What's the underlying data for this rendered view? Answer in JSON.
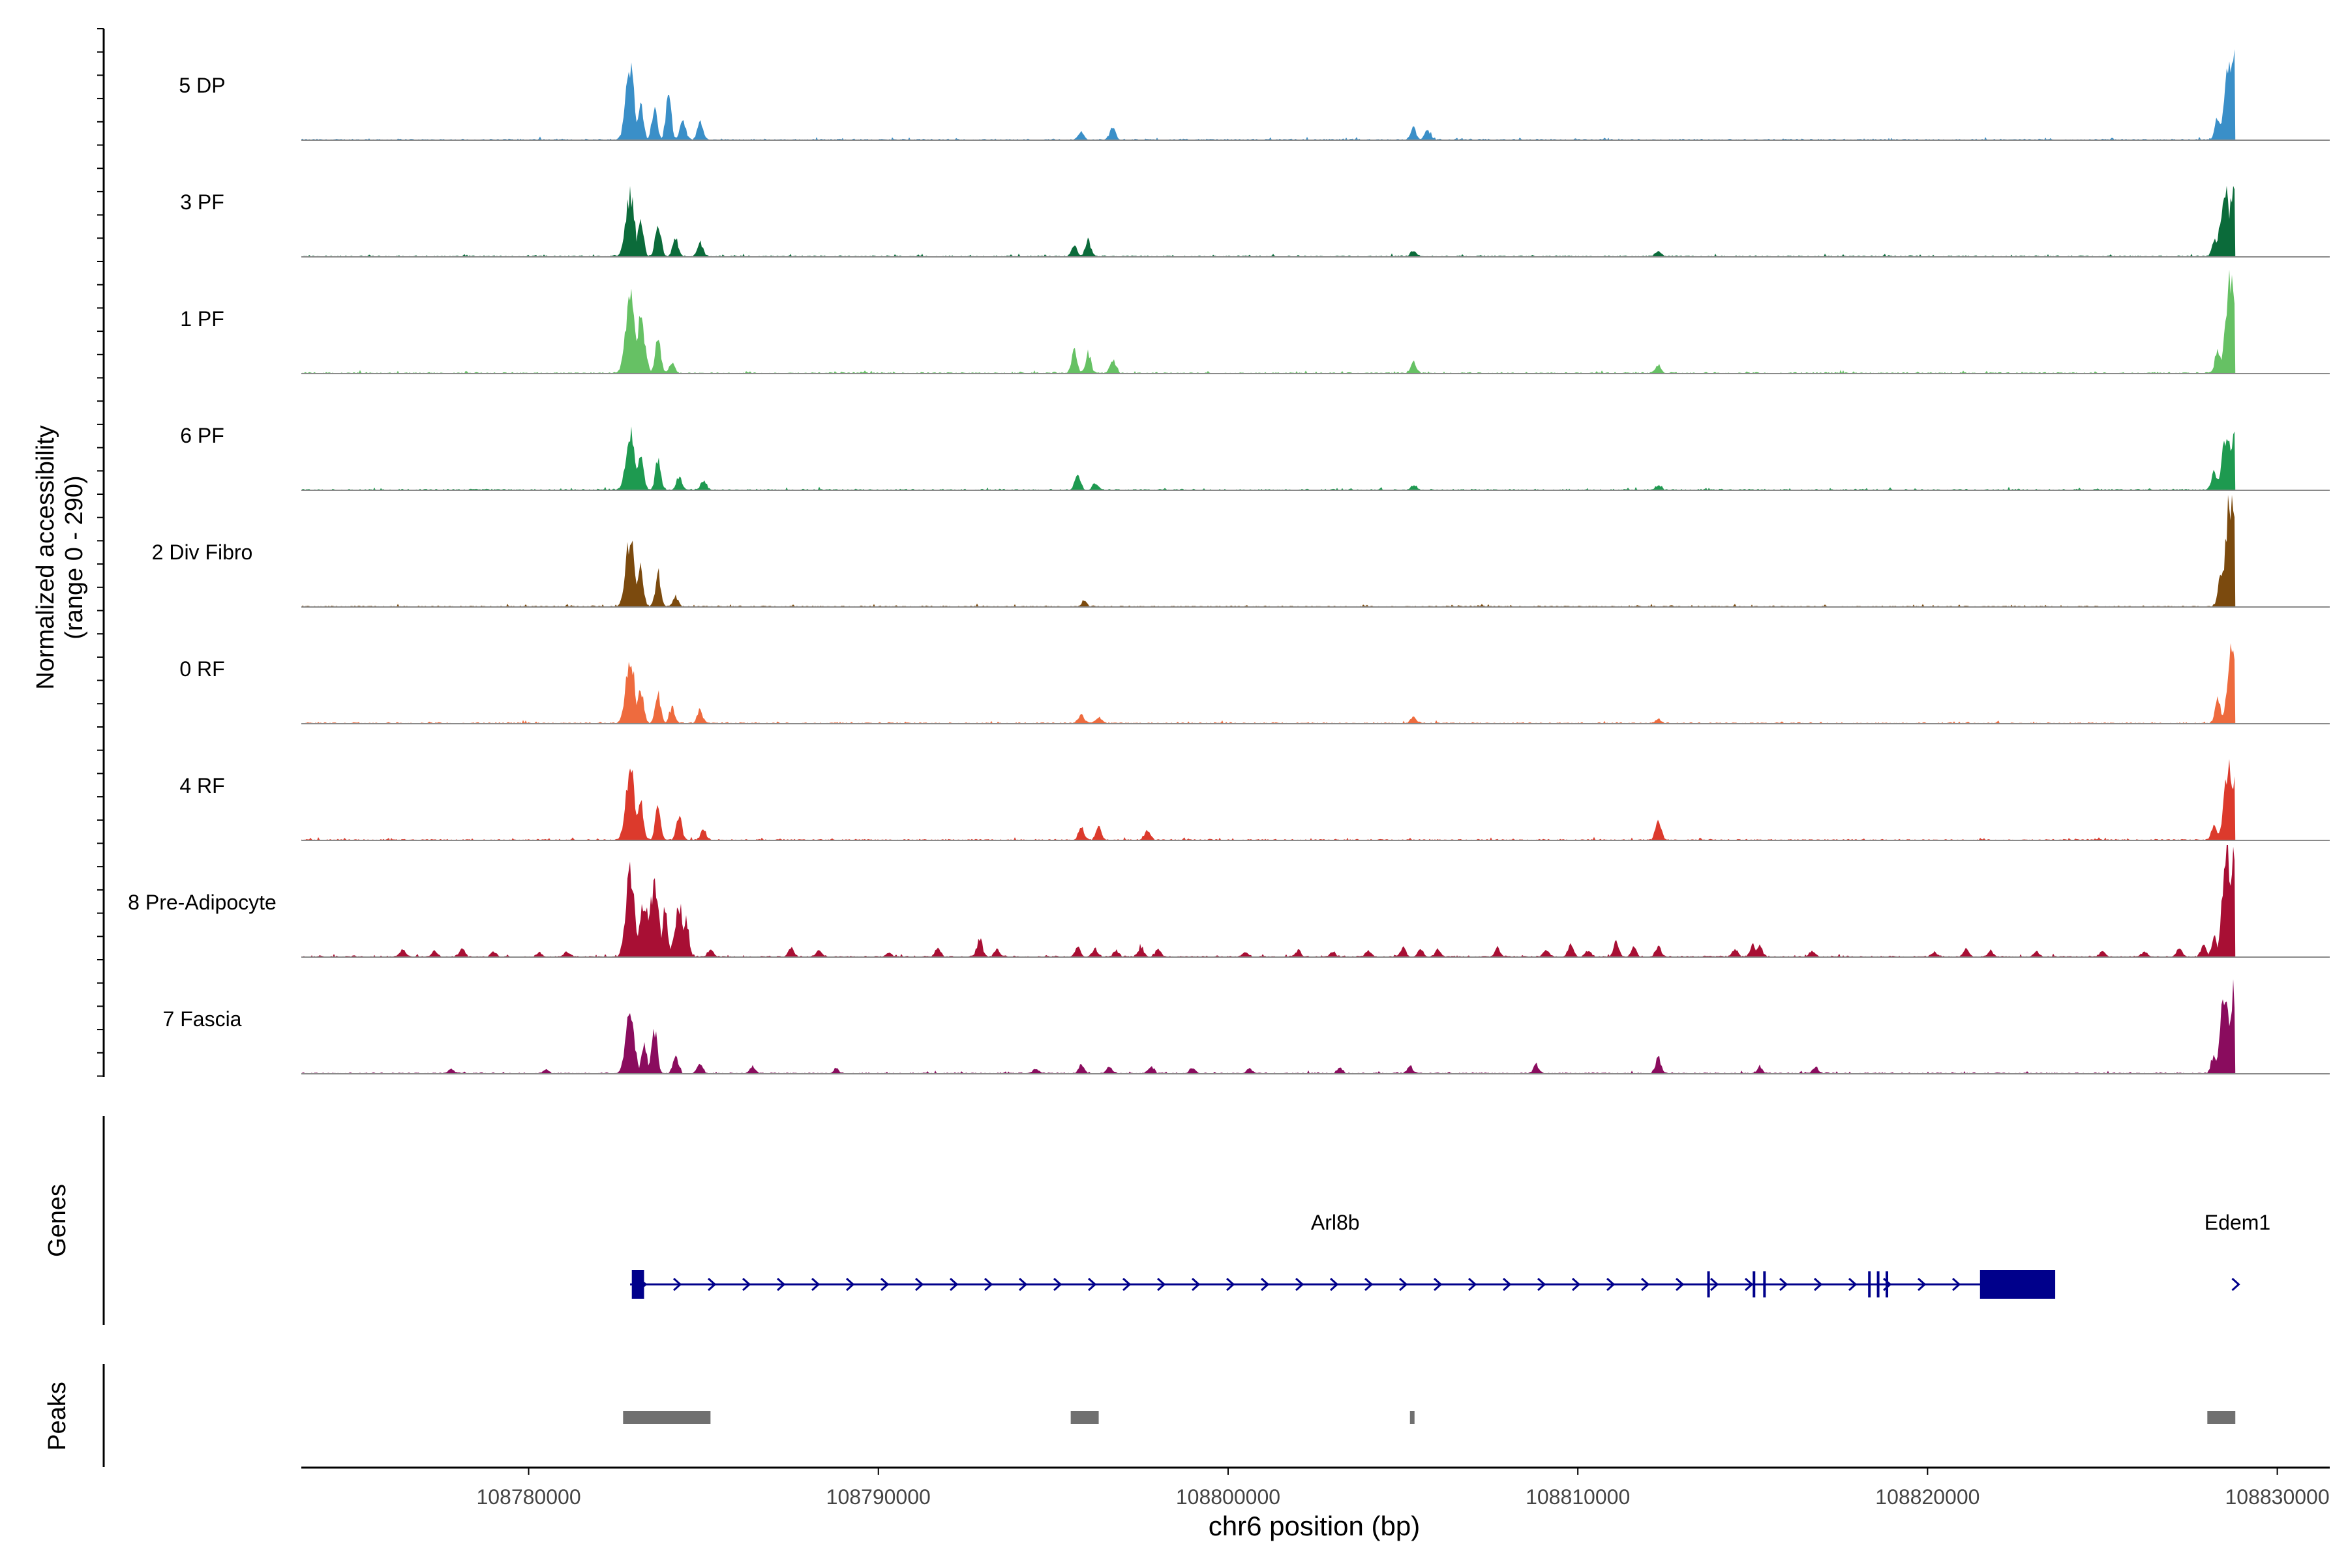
{
  "chart_data": {
    "type": "area",
    "title": "",
    "chromosome": "chr6",
    "xlabel": "chr6 position (bp)",
    "ylabel_line1": "Normalized accessibility",
    "ylabel_line2": "(range 0 - 290)",
    "y_range": [
      0,
      290
    ],
    "xlim": [
      108773500,
      108831500
    ],
    "x_ticks": [
      108780000,
      108790000,
      108800000,
      108810000,
      108820000,
      108830000
    ],
    "x_tick_labels": [
      "108780000",
      "108790000",
      "108800000",
      "108810000",
      "108820000",
      "108830000"
    ],
    "track_range": [
      108773500,
      108828800
    ],
    "tracks": [
      {
        "label": "5 DP",
        "color": "#3A8FC8",
        "peaks": [
          [
            108782900,
            185
          ],
          [
            108783200,
            100
          ],
          [
            108783600,
            75
          ],
          [
            108784000,
            110
          ],
          [
            108784400,
            55
          ],
          [
            108784900,
            45
          ],
          [
            108795800,
            18
          ],
          [
            108796700,
            35
          ],
          [
            108805300,
            30
          ],
          [
            108805700,
            25
          ],
          [
            108828300,
            60
          ],
          [
            108828600,
            180
          ],
          [
            108828750,
            200
          ]
        ]
      },
      {
        "label": "3 PF",
        "color": "#0B6B3A",
        "peaks": [
          [
            108782900,
            160
          ],
          [
            108783200,
            100
          ],
          [
            108783700,
            90
          ],
          [
            108784200,
            45
          ],
          [
            108784900,
            35
          ],
          [
            108795600,
            30
          ],
          [
            108796000,
            40
          ],
          [
            108805300,
            15
          ],
          [
            108812300,
            15
          ],
          [
            108828200,
            40
          ],
          [
            108828500,
            170
          ],
          [
            108828750,
            185
          ]
        ]
      },
      {
        "label": "1 PF",
        "color": "#66C164",
        "peaks": [
          [
            108782900,
            210
          ],
          [
            108783200,
            130
          ],
          [
            108783700,
            90
          ],
          [
            108784100,
            30
          ],
          [
            108795600,
            55
          ],
          [
            108796000,
            50
          ],
          [
            108796700,
            35
          ],
          [
            108805300,
            28
          ],
          [
            108812300,
            22
          ],
          [
            108828300,
            60
          ],
          [
            108828650,
            240
          ],
          [
            108828780,
            200
          ]
        ]
      },
      {
        "label": "6 PF",
        "color": "#1E9A50",
        "peaks": [
          [
            108782900,
            150
          ],
          [
            108783200,
            100
          ],
          [
            108783700,
            75
          ],
          [
            108784300,
            35
          ],
          [
            108785000,
            25
          ],
          [
            108795700,
            42
          ],
          [
            108796200,
            18
          ],
          [
            108805300,
            12
          ],
          [
            108812300,
            10
          ],
          [
            108828200,
            50
          ],
          [
            108828550,
            140
          ],
          [
            108828770,
            150
          ]
        ]
      },
      {
        "label": "2 Div Fibro",
        "color": "#7B4A0E",
        "peaks": [
          [
            108782900,
            175
          ],
          [
            108783200,
            100
          ],
          [
            108783700,
            85
          ],
          [
            108784200,
            25
          ],
          [
            108795900,
            12
          ],
          [
            108828400,
            90
          ],
          [
            108828650,
            280
          ],
          [
            108828780,
            260
          ]
        ]
      },
      {
        "label": "0 RF",
        "color": "#EE6B3E",
        "peaks": [
          [
            108782900,
            170
          ],
          [
            108783200,
            90
          ],
          [
            108783700,
            75
          ],
          [
            108784100,
            40
          ],
          [
            108784900,
            35
          ],
          [
            108795800,
            25
          ],
          [
            108796300,
            15
          ],
          [
            108805300,
            18
          ],
          [
            108812300,
            12
          ],
          [
            108828300,
            70
          ],
          [
            108828700,
            180
          ]
        ]
      },
      {
        "label": "4 RF",
        "color": "#DC3A2C",
        "peaks": [
          [
            108782900,
            185
          ],
          [
            108783200,
            100
          ],
          [
            108783700,
            85
          ],
          [
            108784300,
            65
          ],
          [
            108785000,
            25
          ],
          [
            108795800,
            35
          ],
          [
            108796300,
            32
          ],
          [
            108797700,
            25
          ],
          [
            108812300,
            55
          ],
          [
            108828200,
            40
          ],
          [
            108828600,
            190
          ],
          [
            108828780,
            170
          ]
        ]
      },
      {
        "label": "8 Pre-Adipocyte",
        "color": "#A80F34",
        "peaks": [
          [
            108776400,
            18
          ],
          [
            108777300,
            15
          ],
          [
            108778100,
            20
          ],
          [
            108779000,
            12
          ],
          [
            108780300,
            10
          ],
          [
            108781100,
            14
          ],
          [
            108782900,
            215
          ],
          [
            108783300,
            150
          ],
          [
            108783600,
            190
          ],
          [
            108783900,
            120
          ],
          [
            108784300,
            130
          ],
          [
            108784500,
            100
          ],
          [
            108785200,
            18
          ],
          [
            108787500,
            22
          ],
          [
            108788300,
            18
          ],
          [
            108790300,
            10
          ],
          [
            108791700,
            20
          ],
          [
            108792900,
            45
          ],
          [
            108793400,
            20
          ],
          [
            108795700,
            25
          ],
          [
            108796200,
            20
          ],
          [
            108796800,
            15
          ],
          [
            108797500,
            22
          ],
          [
            108798000,
            18
          ],
          [
            108800500,
            12
          ],
          [
            108802000,
            15
          ],
          [
            108803000,
            12
          ],
          [
            108804000,
            15
          ],
          [
            108805000,
            25
          ],
          [
            108805500,
            20
          ],
          [
            108806000,
            18
          ],
          [
            108807700,
            22
          ],
          [
            108809100,
            18
          ],
          [
            108809800,
            30
          ],
          [
            108810300,
            18
          ],
          [
            108811100,
            38
          ],
          [
            108811600,
            22
          ],
          [
            108812300,
            25
          ],
          [
            108814500,
            18
          ],
          [
            108815000,
            30
          ],
          [
            108815200,
            28
          ],
          [
            108816700,
            14
          ],
          [
            108820200,
            12
          ],
          [
            108821100,
            20
          ],
          [
            108821800,
            14
          ],
          [
            108823100,
            12
          ],
          [
            108825000,
            14
          ],
          [
            108826200,
            12
          ],
          [
            108827200,
            20
          ],
          [
            108827900,
            30
          ],
          [
            108828200,
            50
          ],
          [
            108828550,
            270
          ],
          [
            108828750,
            240
          ]
        ]
      },
      {
        "label": "7 Fascia",
        "color": "#8A0C5E",
        "peaks": [
          [
            108777800,
            12
          ],
          [
            108780500,
            10
          ],
          [
            108782900,
            150
          ],
          [
            108783300,
            80
          ],
          [
            108783600,
            110
          ],
          [
            108784200,
            40
          ],
          [
            108784900,
            28
          ],
          [
            108786400,
            18
          ],
          [
            108788800,
            12
          ],
          [
            108794500,
            12
          ],
          [
            108795800,
            22
          ],
          [
            108796600,
            20
          ],
          [
            108797800,
            18
          ],
          [
            108799000,
            14
          ],
          [
            108800600,
            12
          ],
          [
            108803200,
            15
          ],
          [
            108805200,
            18
          ],
          [
            108808800,
            22
          ],
          [
            108812300,
            40
          ],
          [
            108815200,
            15
          ],
          [
            108816800,
            15
          ],
          [
            108828200,
            50
          ],
          [
            108828500,
            210
          ],
          [
            108828760,
            215
          ]
        ]
      }
    ],
    "genes_panel_label": "Genes",
    "peaks_panel_label": "Peaks",
    "genes": [
      {
        "name": "Arl8b",
        "start": 108782900,
        "end": 108823600,
        "strand": "+",
        "color": "#00008B",
        "exons": [
          [
            108782950,
            108783300,
            "block"
          ],
          [
            108813700,
            108813750,
            "tick"
          ],
          [
            108815000,
            108815050,
            "tick"
          ],
          [
            108815300,
            108815350,
            "tick"
          ],
          [
            108818300,
            108818350,
            "tick"
          ],
          [
            108818550,
            108818600,
            "tick"
          ],
          [
            108818800,
            108818850,
            "tick"
          ],
          [
            108821500,
            108823650,
            "block"
          ]
        ]
      },
      {
        "name": "Edem1",
        "start": 108828600,
        "end": 108828900,
        "strand": "+",
        "color": "#00008B",
        "exons": []
      }
    ],
    "peak_regions": [
      [
        108782700,
        108785200
      ],
      [
        108795500,
        108796300
      ],
      [
        108805200,
        108805300
      ],
      [
        108828000,
        108828800
      ]
    ],
    "peak_color": "#707070"
  }
}
